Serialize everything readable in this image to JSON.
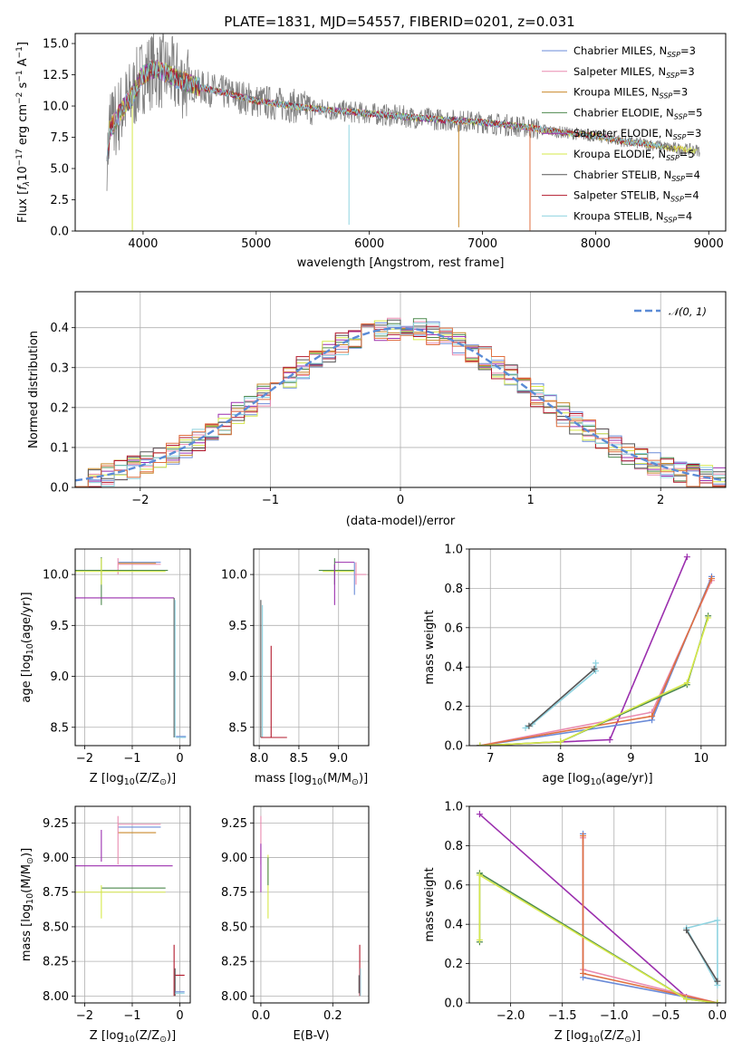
{
  "chart_data": [
    {
      "type": "line",
      "title": "PLATE=1831, MJD=54557, FIBERID=0201, z=0.031",
      "xlabel": "wavelength [Angstrom, rest frame]",
      "ylabel_parts": [
        "Flux [",
        "f",
        "λ",
        "10",
        "−17",
        " erg cm",
        "−2",
        " s",
        "−1",
        " A",
        "−1",
        "]"
      ],
      "xlim": [
        3400,
        9150
      ],
      "ylim": [
        0,
        15.8
      ],
      "xticks": [
        4000,
        5000,
        6000,
        7000,
        8000,
        9000
      ],
      "yticks": [
        0.0,
        2.5,
        5.0,
        7.5,
        10.0,
        12.5,
        15.0
      ],
      "grid": false,
      "legend_position": "upper right",
      "series": [
        {
          "name": "Chabrier MILES, N_SSP=3",
          "label_main": "Chabrier MILES, N",
          "label_sub": "SSP",
          "label_tail": "=3",
          "color": "#6a8bd8"
        },
        {
          "name": "Salpeter MILES, N_SSP=3",
          "label_main": "Salpeter MILES, N",
          "label_sub": "SSP",
          "label_tail": "=3",
          "color": "#e98bb0"
        },
        {
          "name": "Kroupa MILES, N_SSP=3",
          "label_main": "Kroupa MILES, N",
          "label_sub": "SSP",
          "label_tail": "=3",
          "color": "#c98a2c"
        },
        {
          "name": "Chabrier ELODIE, N_SSP=5",
          "label_main": "Chabrier ELODIE, N",
          "label_sub": "SSP",
          "label_tail": "=5",
          "color": "#4e8a4e"
        },
        {
          "name": "Salpeter ELODIE, N_SSP=3",
          "label_main": "Salpeter ELODIE, N",
          "label_sub": "SSP",
          "label_tail": "=3",
          "color": "#9b2fae"
        },
        {
          "name": "Kroupa ELODIE, N_SSP=5",
          "label_main": "Kroupa ELODIE, N",
          "label_sub": "SSP",
          "label_tail": "=5",
          "color": "#d6e84a"
        },
        {
          "name": "Chabrier STELIB, N_SSP=4",
          "label_main": "Chabrier STELIB, N",
          "label_sub": "SSP",
          "label_tail": "=4",
          "color": "#555555"
        },
        {
          "name": "Salpeter STELIB, N_SSP=4",
          "label_main": "Salpeter STELIB, N",
          "label_sub": "SSP",
          "label_tail": "=4",
          "color": "#b2182b"
        },
        {
          "name": "Kroupa STELIB, N_SSP=4",
          "label_main": "Kroupa STELIB, N",
          "label_sub": "SSP",
          "label_tail": "=4",
          "color": "#8fd3e0"
        }
      ],
      "model_profile": {
        "x": [
          3700,
          3800,
          3900,
          4000,
          4100,
          4200,
          4300,
          4500,
          4800,
          5000,
          5500,
          6000,
          6500,
          7000,
          7400,
          7600,
          8000,
          8300,
          8500,
          8700,
          9000
        ],
        "y": [
          8.0,
          9.5,
          10.8,
          12.5,
          13.0,
          12.7,
          12.2,
          11.5,
          10.9,
          10.4,
          9.8,
          9.4,
          9.0,
          8.7,
          8.3,
          8.0,
          7.6,
          7.1,
          6.9,
          6.6,
          6.4
        ]
      },
      "data_color": "#808080"
    },
    {
      "type": "line",
      "xlabel": "(data-model)/error",
      "ylabel": "Normed distribution",
      "xlim": [
        -2.5,
        2.5
      ],
      "ylim": [
        0,
        0.49
      ],
      "xticks": [
        -2,
        -1,
        0,
        1,
        2
      ],
      "yticks": [
        0.0,
        0.1,
        0.2,
        0.3,
        0.4
      ],
      "grid": true,
      "legend_position": "upper right",
      "reference": {
        "label": "𝒩(0, 1)",
        "mean": 0,
        "sigma": 1,
        "color": "#5b8bd6",
        "dash": true
      },
      "bin_width": 0.1,
      "bin_start": -2.5,
      "series_colors": [
        "#6a8bd8",
        "#e98bb0",
        "#c98a2c",
        "#4e8a4e",
        "#9b2fae",
        "#d6e84a",
        "#555555",
        "#b2182b",
        "#8fd3e0",
        "#e07040"
      ]
    },
    {
      "type": "scatter",
      "xlabel_parts": [
        "Z [log",
        "10",
        "(Z/Z",
        "⊙",
        ")]"
      ],
      "ylabel_parts": [
        "age  [log",
        "10",
        "(age/yr)]"
      ],
      "xlim": [
        -2.2,
        0.22
      ],
      "ylim": [
        8.32,
        10.25
      ],
      "xticks": [
        -2,
        -1,
        0
      ],
      "yticks": [
        8.5,
        9.0,
        9.5,
        10.0
      ],
      "grid": true,
      "segments": [
        {
          "x": [
            -1.3,
            -0.4
          ],
          "y": [
            10.1,
            10.1
          ],
          "color": "#e98bb0"
        },
        {
          "x": [
            -1.3,
            -0.4
          ],
          "y": [
            10.12,
            10.12
          ],
          "color": "#6a8bd8"
        },
        {
          "x": [
            -1.3,
            -0.5
          ],
          "y": [
            10.11,
            10.11
          ],
          "color": "#c98a2c"
        },
        {
          "x": [
            -1.3,
            -1.3
          ],
          "y": [
            10.0,
            10.16
          ],
          "color": "#e98bb0"
        },
        {
          "x": [
            -2.3,
            -0.25
          ],
          "y": [
            10.04,
            10.04
          ],
          "color": "#4e8a4e"
        },
        {
          "x": [
            -2.3,
            -0.3
          ],
          "y": [
            10.03,
            10.03
          ],
          "color": "#d6e84a"
        },
        {
          "x": [
            -1.65,
            -1.65
          ],
          "y": [
            9.7,
            10.17
          ],
          "color": "#4e8a4e"
        },
        {
          "x": [
            -1.65,
            -1.65
          ],
          "y": [
            9.9,
            10.16
          ],
          "color": "#d6e84a"
        },
        {
          "x": [
            -2.3,
            -0.12
          ],
          "y": [
            9.77,
            9.77
          ],
          "color": "#9b2fae"
        },
        {
          "x": [
            -0.12,
            -0.12
          ],
          "y": [
            8.4,
            9.77
          ],
          "color": "#555555"
        },
        {
          "x": [
            -0.1,
            -0.1
          ],
          "y": [
            8.4,
            9.75
          ],
          "color": "#8fd3e0"
        },
        {
          "x": [
            -0.08,
            0.13
          ],
          "y": [
            8.4,
            8.4
          ],
          "color": "#8fd3e0"
        },
        {
          "x": [
            -0.08,
            0.13
          ],
          "y": [
            8.41,
            8.41
          ],
          "color": "#6a8bd8"
        }
      ]
    },
    {
      "type": "scatter",
      "xlabel_parts": [
        "mass [log",
        "10",
        "(M/M",
        "⊙",
        ")]"
      ],
      "xlim": [
        7.93,
        9.38
      ],
      "ylim": [
        8.32,
        10.25
      ],
      "xticks": [
        8.0,
        8.5,
        9.0
      ],
      "yticks": [
        8.5,
        9.0,
        9.5,
        10.0
      ],
      "grid": true,
      "segments": [
        {
          "x": [
            8.75,
            9.2
          ],
          "y": [
            10.04,
            10.04
          ],
          "color": "#4e8a4e"
        },
        {
          "x": [
            8.8,
            9.2
          ],
          "y": [
            10.03,
            10.03
          ],
          "color": "#d6e84a"
        },
        {
          "x": [
            8.95,
            8.95
          ],
          "y": [
            9.9,
            10.16
          ],
          "color": "#4e8a4e"
        },
        {
          "x": [
            8.95,
            9.2
          ],
          "y": [
            10.12,
            10.12
          ],
          "color": "#9b2fae"
        },
        {
          "x": [
            8.95,
            8.95
          ],
          "y": [
            9.7,
            10.1
          ],
          "color": "#9b2fae"
        },
        {
          "x": [
            9.2,
            9.2
          ],
          "y": [
            9.8,
            10.12
          ],
          "color": "#6a8bd8"
        },
        {
          "x": [
            9.22,
            9.22
          ],
          "y": [
            9.9,
            10.12
          ],
          "color": "#e98bb0"
        },
        {
          "x": [
            9.2,
            9.35
          ],
          "y": [
            10.0,
            10.0
          ],
          "color": "#e98bb0"
        },
        {
          "x": [
            8.02,
            8.02
          ],
          "y": [
            8.4,
            9.75
          ],
          "color": "#555555"
        },
        {
          "x": [
            8.04,
            8.04
          ],
          "y": [
            8.4,
            9.7
          ],
          "color": "#8fd3e0"
        },
        {
          "x": [
            8.15,
            8.15
          ],
          "y": [
            8.4,
            9.3
          ],
          "color": "#b2182b"
        },
        {
          "x": [
            8.02,
            8.35
          ],
          "y": [
            8.4,
            8.4
          ],
          "color": "#b2182b"
        }
      ]
    },
    {
      "type": "line",
      "xlabel_parts": [
        "age  [log",
        "10",
        "(age/yr)]"
      ],
      "ylabel": "mass weight",
      "xlim": [
        6.7,
        10.35
      ],
      "ylim": [
        0,
        1.0
      ],
      "xticks": [
        7,
        8,
        9,
        10
      ],
      "yticks": [
        0.0,
        0.2,
        0.4,
        0.6,
        0.8,
        1.0
      ],
      "grid": true,
      "series": [
        {
          "color": "#9b2fae",
          "x": [
            6.85,
            8.7,
            9.8
          ],
          "y": [
            0.0,
            0.03,
            0.96
          ]
        },
        {
          "color": "#e98bb0",
          "x": [
            6.85,
            9.3,
            10.15
          ],
          "y": [
            0.0,
            0.17,
            0.84
          ]
        },
        {
          "color": "#6a8bd8",
          "x": [
            6.85,
            9.3,
            10.15
          ],
          "y": [
            0.0,
            0.13,
            0.86
          ]
        },
        {
          "color": "#e07040",
          "x": [
            6.85,
            9.3,
            10.15
          ],
          "y": [
            0.0,
            0.15,
            0.85
          ]
        },
        {
          "color": "#4e8a4e",
          "x": [
            6.85,
            8.0,
            9.8,
            10.1
          ],
          "y": [
            0.0,
            0.02,
            0.31,
            0.66
          ]
        },
        {
          "color": "#d6e84a",
          "x": [
            6.85,
            8.0,
            9.8,
            10.1
          ],
          "y": [
            0.0,
            0.02,
            0.32,
            0.65
          ]
        },
        {
          "color": "#8fd3e0",
          "x": [
            7.5,
            7.6,
            8.5,
            8.5
          ],
          "y": [
            0.09,
            0.11,
            0.38,
            0.42
          ]
        },
        {
          "color": "#555555",
          "x": [
            7.55,
            8.48
          ],
          "y": [
            0.1,
            0.39
          ]
        }
      ]
    },
    {
      "type": "scatter",
      "xlabel_parts": [
        "Z [log",
        "10",
        "(Z/Z",
        "⊙",
        ")]"
      ],
      "ylabel_parts": [
        "mass [log",
        "10",
        "(M/M",
        "⊙",
        ")]"
      ],
      "xlim": [
        -2.2,
        0.22
      ],
      "ylim": [
        7.95,
        9.37
      ],
      "xticks": [
        -2,
        -1,
        0
      ],
      "yticks": [
        8.0,
        8.25,
        8.5,
        8.75,
        9.0,
        9.25
      ],
      "grid": true,
      "segments": [
        {
          "x": [
            -1.3,
            -0.4
          ],
          "y": [
            9.22,
            9.22
          ],
          "color": "#6a8bd8"
        },
        {
          "x": [
            -1.3,
            -0.4
          ],
          "y": [
            9.24,
            9.24
          ],
          "color": "#e98bb0"
        },
        {
          "x": [
            -1.3,
            -0.5
          ],
          "y": [
            9.18,
            9.18
          ],
          "color": "#c98a2c"
        },
        {
          "x": [
            -1.3,
            -1.3
          ],
          "y": [
            8.95,
            9.3
          ],
          "color": "#e98bb0"
        },
        {
          "x": [
            -1.65,
            -1.65
          ],
          "y": [
            8.97,
            9.2
          ],
          "color": "#9b2fae"
        },
        {
          "x": [
            -2.3,
            -0.15
          ],
          "y": [
            8.94,
            8.94
          ],
          "color": "#9b2fae"
        },
        {
          "x": [
            -1.65,
            -0.3
          ],
          "y": [
            8.78,
            8.78
          ],
          "color": "#4e8a4e"
        },
        {
          "x": [
            -2.3,
            -0.3
          ],
          "y": [
            8.75,
            8.75
          ],
          "color": "#d6e84a"
        },
        {
          "x": [
            -1.65,
            -1.65
          ],
          "y": [
            8.56,
            8.8
          ],
          "color": "#d6e84a"
        },
        {
          "x": [
            -0.12,
            -0.12
          ],
          "y": [
            8.0,
            8.37
          ],
          "color": "#b2182b"
        },
        {
          "x": [
            -0.1,
            0.1
          ],
          "y": [
            8.15,
            8.15
          ],
          "color": "#b2182b"
        },
        {
          "x": [
            -0.1,
            -0.1
          ],
          "y": [
            8.0,
            8.2
          ],
          "color": "#555555"
        },
        {
          "x": [
            -0.1,
            0.1
          ],
          "y": [
            8.02,
            8.02
          ],
          "color": "#8fd3e0"
        },
        {
          "x": [
            -0.1,
            0.1
          ],
          "y": [
            8.03,
            8.03
          ],
          "color": "#6a8bd8"
        }
      ]
    },
    {
      "type": "scatter",
      "xlabel": "E(B-V)",
      "xlim": [
        -0.02,
        0.3
      ],
      "ylim": [
        7.95,
        9.37
      ],
      "xticks": [
        0.0,
        0.2
      ],
      "yticks": [
        8.0,
        8.25,
        8.5,
        8.75,
        9.0,
        9.25
      ],
      "grid": true,
      "segments": [
        {
          "x": [
            0.0,
            0.0
          ],
          "y": [
            8.95,
            9.3
          ],
          "color": "#e98bb0"
        },
        {
          "x": [
            0.0,
            0.0
          ],
          "y": [
            8.75,
            9.1
          ],
          "color": "#9b2fae"
        },
        {
          "x": [
            0.02,
            0.02
          ],
          "y": [
            8.56,
            9.02
          ],
          "color": "#d6e84a"
        },
        {
          "x": [
            0.02,
            0.02
          ],
          "y": [
            8.8,
            9.0
          ],
          "color": "#4e8a4e"
        },
        {
          "x": [
            0.275,
            0.275
          ],
          "y": [
            8.0,
            8.37
          ],
          "color": "#b2182b"
        },
        {
          "x": [
            0.277,
            0.277
          ],
          "y": [
            8.0,
            8.2
          ],
          "color": "#8fd3e0"
        },
        {
          "x": [
            0.273,
            0.273
          ],
          "y": [
            8.02,
            8.15
          ],
          "color": "#555555"
        }
      ]
    },
    {
      "type": "line",
      "xlabel_parts": [
        "Z [log",
        "10",
        "(Z/Z",
        "⊙",
        ")]"
      ],
      "ylabel": "mass weight",
      "xlim": [
        -2.4,
        0.08
      ],
      "ylim": [
        0,
        1.0
      ],
      "xticks": [
        -2.0,
        -1.5,
        -1.0,
        -0.5,
        0.0
      ],
      "yticks": [
        0.0,
        0.2,
        0.4,
        0.6,
        0.8,
        1.0
      ],
      "grid": true,
      "series": [
        {
          "color": "#9b2fae",
          "x": [
            -2.3,
            -0.3,
            0.0
          ],
          "y": [
            0.96,
            0.03,
            0.0
          ]
        },
        {
          "color": "#6a8bd8",
          "x": [
            -1.3,
            -1.3,
            0.0
          ],
          "y": [
            0.86,
            0.13,
            0.0
          ]
        },
        {
          "color": "#e98bb0",
          "x": [
            -1.3,
            -1.3,
            0.0
          ],
          "y": [
            0.84,
            0.17,
            0.0
          ]
        },
        {
          "color": "#e07040",
          "x": [
            -1.3,
            -1.3,
            0.0
          ],
          "y": [
            0.85,
            0.15,
            0.0
          ]
        },
        {
          "color": "#4e8a4e",
          "x": [
            -2.3,
            -2.3,
            -0.3,
            0.0
          ],
          "y": [
            0.31,
            0.66,
            0.02,
            0.0
          ]
        },
        {
          "color": "#d6e84a",
          "x": [
            -2.3,
            -2.3,
            -0.3,
            0.0
          ],
          "y": [
            0.32,
            0.65,
            0.02,
            0.0
          ]
        },
        {
          "color": "#8fd3e0",
          "x": [
            -0.3,
            0.0,
            0.0,
            -0.3
          ],
          "y": [
            0.38,
            0.09,
            0.42,
            0.38
          ]
        },
        {
          "color": "#555555",
          "x": [
            -0.3,
            0.0
          ],
          "y": [
            0.37,
            0.11
          ]
        }
      ]
    }
  ]
}
